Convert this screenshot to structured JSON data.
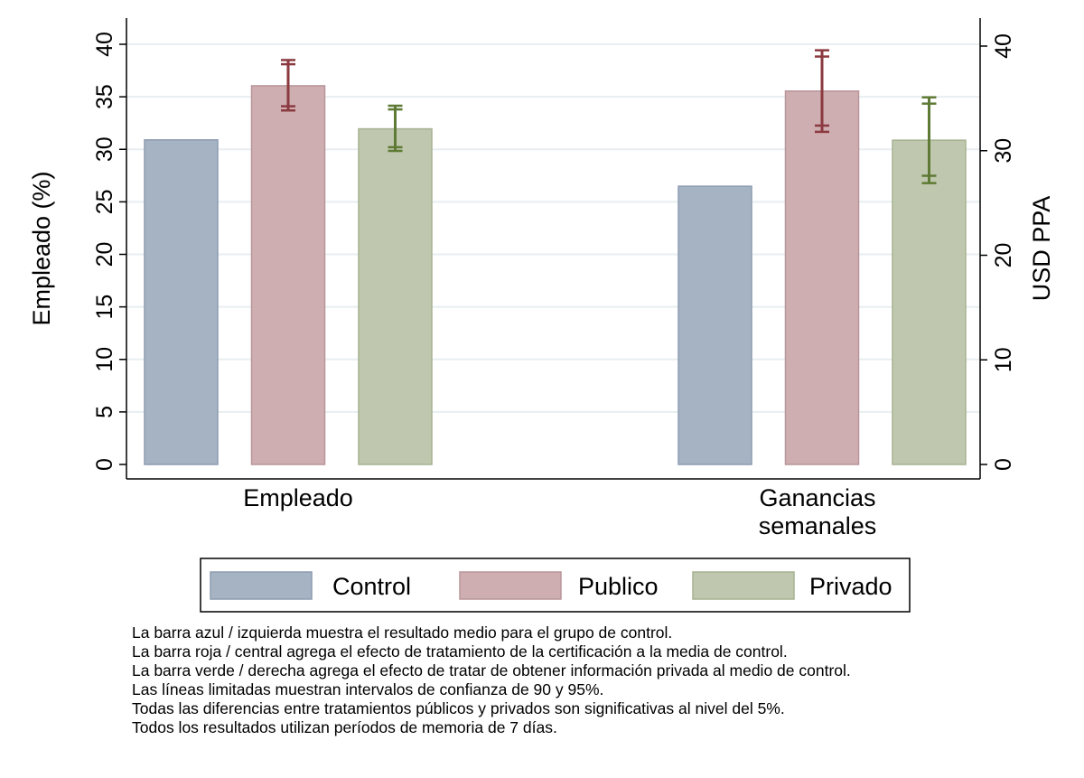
{
  "chart_data": {
    "type": "bar",
    "categories": [
      [
        "Empleado"
      ],
      [
        "Ganancias",
        "semanales"
      ]
    ],
    "series": [
      {
        "name": "Control",
        "values": [
          30.9,
          26.6
        ],
        "color": "#a6b3c3",
        "stroke": "#8d9cb1"
      },
      {
        "name": "Publico",
        "values": [
          36.05,
          35.7
        ],
        "color": "#cfaeb1",
        "stroke": "#b8959a",
        "ci95": [
          [
            33.7,
            38.5
          ],
          [
            31.8,
            39.6
          ]
        ],
        "ci90": [
          [
            34.1,
            38.1
          ],
          [
            32.4,
            39.0
          ]
        ],
        "ci_color": "#8b3a40"
      },
      {
        "name": "Privado",
        "values": [
          31.95,
          31.0
        ],
        "color": "#bfc8ae",
        "stroke": "#a5b291",
        "ci95": [
          [
            29.85,
            34.15
          ],
          [
            26.9,
            35.1
          ]
        ],
        "ci90": [
          [
            30.2,
            33.8
          ],
          [
            27.6,
            34.5
          ]
        ],
        "ci_color": "#5e7a34"
      }
    ],
    "ylabel": "Empleado (%)",
    "y2label": "USD PPA",
    "ylim": [
      0,
      40
    ],
    "yticks": [
      "0",
      "5",
      "10",
      "15",
      "20",
      "25",
      "30",
      "35",
      "40"
    ],
    "y2ticks": [
      "0",
      "10",
      "20",
      "30",
      "40"
    ],
    "grid": true,
    "legend_position": "bottom",
    "axis_note": "Empleado uses left axis; Ganancias semanales uses right axis"
  },
  "notes": [
    "La barra azul / izquierda muestra el resultado medio para el grupo de control.",
    "La barra roja / central agrega el efecto de tratamiento de la certificación a la media de control.",
    "La barra verde / derecha agrega el efecto de tratar de obtener información privada al medio de control.",
    "Las líneas limitadas muestran intervalos de confianza de 90 y 95%.",
    "Todas las diferencias entre tratamientos públicos y privados son significativas al nivel del 5%.",
    "Todos los resultados utilizan períodos de memoria de 7 días."
  ]
}
